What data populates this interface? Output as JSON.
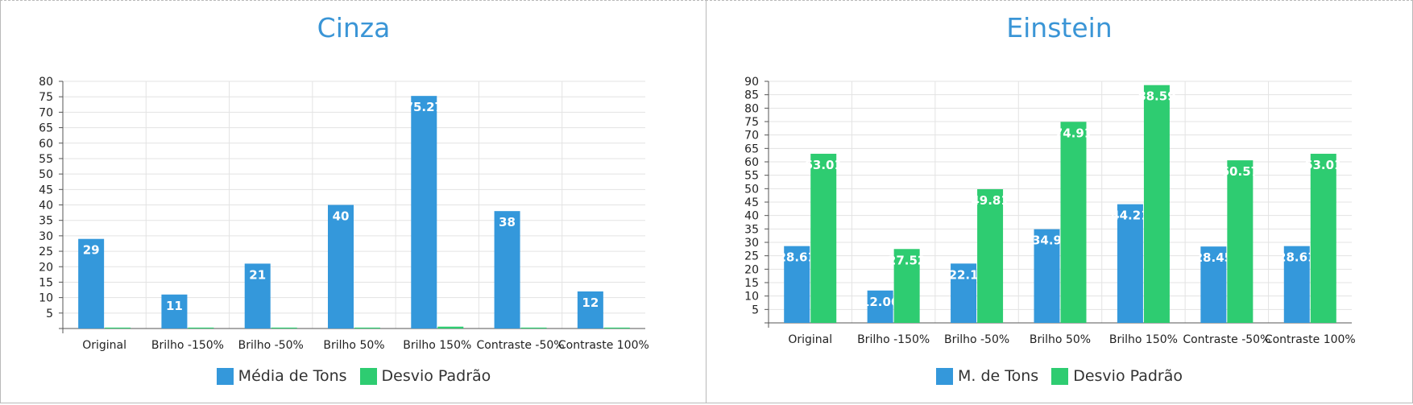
{
  "chart_data": [
    {
      "type": "bar",
      "title": "Cinza",
      "categories": [
        "Original",
        "Brilho -150%",
        "Brilho -50%",
        "Brilho 50%",
        "Brilho 150%",
        "Contraste -50%",
        "Contraste 100%"
      ],
      "series": [
        {
          "name": "Média de Tons",
          "color": "#3498db",
          "values": [
            29,
            11,
            21,
            40,
            75.27,
            38,
            12
          ],
          "labels": [
            "29",
            "11",
            "21",
            "40",
            "75.27",
            "38",
            "12"
          ]
        },
        {
          "name": "Desvio Padrão",
          "color": "#2ecc71",
          "values": [
            0.3,
            0.3,
            0.3,
            0.3,
            0.6,
            0.3,
            0.3
          ],
          "labels": [
            "",
            "",
            "",
            "",
            "",
            "",
            ""
          ]
        }
      ],
      "ylim": [
        0,
        80
      ],
      "yticks": [
        5,
        10,
        15,
        20,
        25,
        30,
        35,
        40,
        45,
        50,
        55,
        60,
        65,
        70,
        75,
        80
      ],
      "grid": true,
      "legend_position": "bottom-center"
    },
    {
      "type": "bar",
      "title": "Einstein",
      "categories": [
        "Original",
        "Brilho -150%",
        "Brilho -50%",
        "Brilho 50%",
        "Brilho 150%",
        "Contraste -50%",
        "Contraste 100%"
      ],
      "series": [
        {
          "name": "M. de Tons",
          "color": "#3498db",
          "values": [
            28.61,
            12.06,
            22.1,
            34.9,
            44.21,
            28.45,
            28.61
          ],
          "labels": [
            "28.61",
            "12.06",
            "22.1",
            "34.9",
            "44.21",
            "28.45",
            "28.61"
          ]
        },
        {
          "name": "Desvio Padrão",
          "color": "#2ecc71",
          "values": [
            63.01,
            27.52,
            49.81,
            74.91,
            88.59,
            60.57,
            63.01
          ],
          "labels": [
            "63.01",
            "27.52",
            "49.81",
            "74.91",
            "88.59",
            "60.57",
            "63.01"
          ]
        }
      ],
      "ylim": [
        0,
        90
      ],
      "yticks": [
        5,
        10,
        15,
        20,
        25,
        30,
        35,
        40,
        45,
        50,
        55,
        60,
        65,
        70,
        75,
        80,
        85,
        90
      ],
      "grid": true,
      "legend_position": "bottom-center"
    }
  ]
}
